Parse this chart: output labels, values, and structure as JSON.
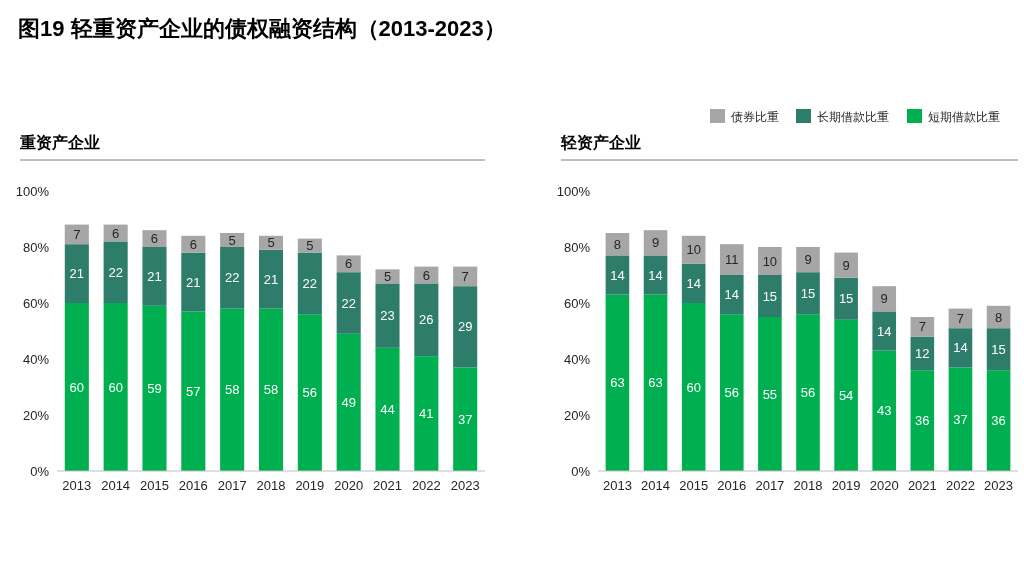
{
  "chart_data": [
    {
      "type": "bar",
      "title": "图19 轻重资产企业的债权融资结构（2013-2023）",
      "subtitle": "重资产企业",
      "categories": [
        "2013",
        "2014",
        "2015",
        "2016",
        "2017",
        "2018",
        "2019",
        "2020",
        "2021",
        "2022",
        "2023"
      ],
      "stacked": true,
      "data_labels": true,
      "ylim": [
        0,
        100
      ],
      "yticks": [
        {
          "value": 0,
          "label": "0%"
        },
        {
          "value": 20,
          "label": "20%"
        },
        {
          "value": 40,
          "label": "40%"
        },
        {
          "value": 60,
          "label": "60%"
        },
        {
          "value": 80,
          "label": "80%"
        },
        {
          "value": 100,
          "label": "100%"
        }
      ],
      "grid": false,
      "series": [
        {
          "color": "#00b050",
          "values": [
            60,
            60,
            59,
            57,
            58,
            58,
            56,
            49,
            44,
            41,
            37
          ]
        },
        {
          "color": "#2e7d6b",
          "values": [
            21,
            22,
            21,
            21,
            22,
            21,
            22,
            22,
            23,
            26,
            29
          ]
        },
        {
          "color": "#a6a6a6",
          "values": [
            7,
            6,
            6,
            6,
            5,
            5,
            5,
            6,
            5,
            6,
            7
          ]
        }
      ]
    },
    {
      "type": "bar",
      "subtitle": "轻资产企业",
      "categories": [
        "2013",
        "2014",
        "2015",
        "2016",
        "2017",
        "2018",
        "2019",
        "2020",
        "2021",
        "2022",
        "2023"
      ],
      "stacked": true,
      "data_labels": true,
      "legend": "top right",
      "ylim": [
        0,
        100
      ],
      "yticks": [
        {
          "value": 0,
          "label": "0%"
        },
        {
          "value": 20,
          "label": "20%"
        },
        {
          "value": 40,
          "label": "40%"
        },
        {
          "value": 60,
          "label": "60%"
        },
        {
          "value": 80,
          "label": "80%"
        },
        {
          "value": 100,
          "label": "100%"
        }
      ],
      "grid": false,
      "series": [
        {
          "name": "短期借款比重",
          "color": "#00b050",
          "values": [
            63,
            63,
            60,
            56,
            55,
            56,
            54,
            43,
            36,
            37,
            36
          ]
        },
        {
          "name": "长期借款比重",
          "color": "#2e7d6b",
          "values": [
            14,
            14,
            14,
            14,
            15,
            15,
            15,
            14,
            12,
            14,
            15
          ]
        },
        {
          "name": "债券比重",
          "color": "#a6a6a6",
          "values": [
            8,
            9,
            10,
            11,
            10,
            9,
            9,
            9,
            7,
            7,
            8
          ]
        }
      ]
    }
  ]
}
